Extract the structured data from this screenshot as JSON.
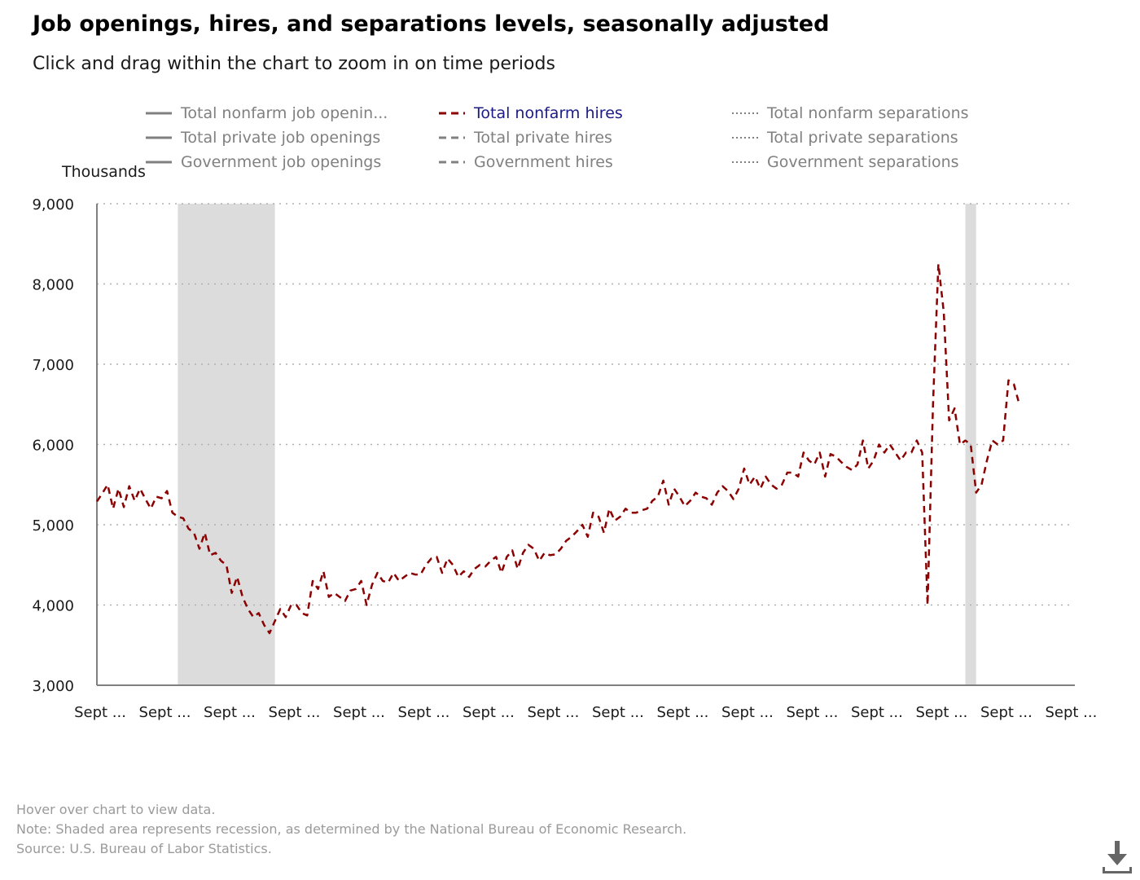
{
  "title": "Job openings, hires, and separations levels, seasonally adjusted",
  "subtitle": "Click and drag within the chart to zoom in on time periods",
  "legend": [
    {
      "label": "Total nonfarm job openin...",
      "style": "solid",
      "active": false
    },
    {
      "label": "Total private job openings",
      "style": "solid",
      "active": false
    },
    {
      "label": "Government job openings",
      "style": "solid",
      "active": false
    },
    {
      "label": "Total nonfarm hires",
      "style": "dashed",
      "active": true
    },
    {
      "label": "Total private hires",
      "style": "dashed",
      "active": false
    },
    {
      "label": "Government hires",
      "style": "dashed",
      "active": false
    },
    {
      "label": "Total nonfarm separations",
      "style": "dotted",
      "active": false
    },
    {
      "label": "Total private separations",
      "style": "dotted",
      "active": false
    },
    {
      "label": "Government separations",
      "style": "dotted",
      "active": false
    }
  ],
  "footnotes": {
    "hover": "Hover over chart to view data.",
    "note": "Note: Shaded area represents recession, as determined by the National Bureau of Economic Research.",
    "source": "Source: U.S. Bureau of Labor Statistics."
  },
  "colors": {
    "series": "#8b0000",
    "inactive_legend": "#808080",
    "active_legend_text": "#1b1b86",
    "recession": "#dcdcdc",
    "grid": "#b0b0b0",
    "axis": "#808080"
  },
  "chart_data": {
    "type": "line",
    "ylabel": "Thousands",
    "ylim": [
      3000,
      9000
    ],
    "yticks": [
      3000,
      4000,
      5000,
      6000,
      7000,
      8000,
      9000
    ],
    "ytick_labels": [
      "3,000",
      "4,000",
      "5,000",
      "6,000",
      "7,000",
      "8,000",
      "9,000"
    ],
    "xtick_labels": [
      "Sept ...",
      "Sept ...",
      "Sept ...",
      "Sept ...",
      "Sept ...",
      "Sept ...",
      "Sept ...",
      "Sept ...",
      "Sept ...",
      "Sept ...",
      "Sept ...",
      "Sept ...",
      "Sept ...",
      "Sept ...",
      "Sept ...",
      "Sept ..."
    ],
    "xlim": [
      0,
      181
    ],
    "xtick_positions": [
      0,
      12,
      24,
      36,
      48,
      60,
      72,
      84,
      96,
      108,
      120,
      132,
      144,
      156,
      168,
      180
    ],
    "grid": true,
    "recessions": [
      [
        15,
        33
      ],
      [
        161,
        163
      ]
    ],
    "series": [
      {
        "name": "Total nonfarm hires",
        "dash": "dashed",
        "values": [
          5290,
          5390,
          5500,
          5200,
          5450,
          5220,
          5480,
          5300,
          5450,
          5320,
          5200,
          5350,
          5330,
          5420,
          5150,
          5100,
          5080,
          4950,
          4900,
          4700,
          4900,
          4620,
          4650,
          4550,
          4500,
          4150,
          4350,
          4100,
          3950,
          3850,
          3900,
          3750,
          3650,
          3800,
          3950,
          3850,
          4000,
          4000,
          3900,
          3870,
          4300,
          4200,
          4420,
          4100,
          4150,
          4100,
          4050,
          4180,
          4200,
          4300,
          4000,
          4250,
          4400,
          4300,
          4280,
          4400,
          4300,
          4350,
          4400,
          4380,
          4380,
          4500,
          4580,
          4600,
          4400,
          4580,
          4500,
          4350,
          4420,
          4350,
          4450,
          4500,
          4480,
          4550,
          4600,
          4400,
          4600,
          4680,
          4450,
          4650,
          4750,
          4700,
          4550,
          4650,
          4620,
          4630,
          4700,
          4800,
          4850,
          4920,
          5000,
          4850,
          5150,
          5100,
          4900,
          5200,
          5050,
          5100,
          5200,
          5150,
          5150,
          5180,
          5200,
          5300,
          5350,
          5550,
          5250,
          5450,
          5350,
          5230,
          5300,
          5400,
          5350,
          5330,
          5250,
          5400,
          5480,
          5420,
          5320,
          5450,
          5700,
          5500,
          5600,
          5450,
          5600,
          5500,
          5450,
          5500,
          5650,
          5650,
          5600,
          5900,
          5800,
          5750,
          5900,
          5600,
          5880,
          5850,
          5780,
          5720,
          5680,
          5750,
          6050,
          5700,
          5800,
          6000,
          5900,
          6000,
          5900,
          5800,
          5900,
          5900,
          6050,
          5900,
          4000,
          6500,
          8250,
          7650,
          6300,
          6450,
          6000,
          6050,
          6000,
          5400,
          5500,
          5800,
          6050,
          6000,
          6050,
          6800,
          6750,
          6500
        ]
      }
    ]
  }
}
